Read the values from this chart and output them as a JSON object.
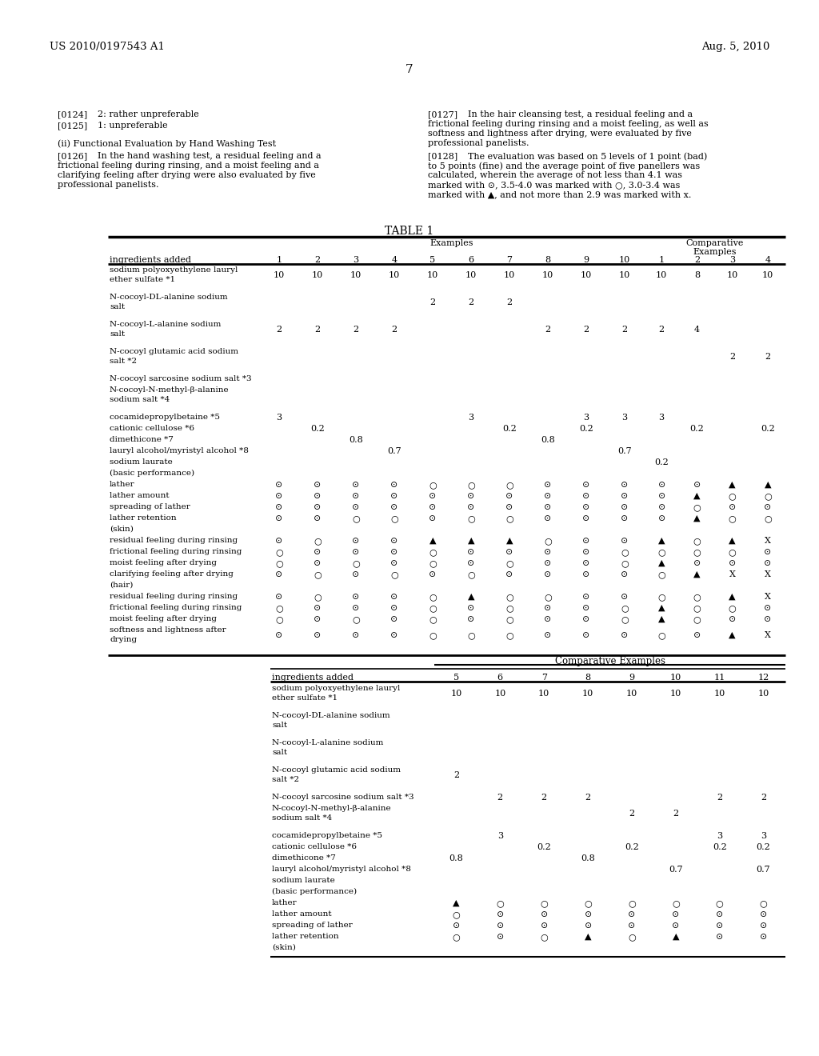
{
  "page_header_left": "US 2010/0197543 A1",
  "page_header_right": "Aug. 5, 2010",
  "page_number": "7",
  "background_color": "#ffffff",
  "t1_rows": [
    {
      "label": "sodium polyoxyethylene lauryl\nether sulfate *1",
      "ex": [
        "10",
        "10",
        "10",
        "10",
        "10",
        "10",
        "10",
        "10",
        "10",
        "10"
      ],
      "comp": [
        "10",
        "8",
        "10",
        "10"
      ]
    },
    {
      "label": "N-cocoyl-DL-alanine sodium\nsalt",
      "ex": [
        "",
        "",
        "",
        "",
        "2",
        "2",
        "2",
        "",
        "",
        ""
      ],
      "comp": [
        "",
        "",
        "",
        ""
      ]
    },
    {
      "label": "N-cocoyl-L-alanine sodium\nsalt",
      "ex": [
        "2",
        "2",
        "2",
        "2",
        "",
        "",
        "",
        "2",
        "2",
        "2"
      ],
      "comp": [
        "2",
        "4",
        "",
        ""
      ]
    },
    {
      "label": "N-cocoyl glutamic acid sodium\nsalt *2",
      "ex": [
        "",
        "",
        "",
        "",
        "",
        "",
        "",
        "",
        "",
        ""
      ],
      "comp": [
        "",
        "",
        "2",
        "2"
      ]
    },
    {
      "label": "N-cocoyl sarcosine sodium salt *3",
      "ex": [
        "",
        "",
        "",
        "",
        "",
        "",
        "",
        "",
        "",
        ""
      ],
      "comp": [
        "",
        "",
        "",
        ""
      ]
    },
    {
      "label": "N-cocoyl-N-methyl-β-alanine\nsodium salt *4",
      "ex": [
        "",
        "",
        "",
        "",
        "",
        "",
        "",
        "",
        "",
        ""
      ],
      "comp": [
        "",
        "",
        "",
        ""
      ]
    },
    {
      "label": "cocamidepropylbetaine *5",
      "ex": [
        "3",
        "",
        "",
        "",
        "",
        "3",
        "",
        "",
        "3",
        "3"
      ],
      "comp": [
        "3",
        "",
        "",
        ""
      ]
    },
    {
      "label": "cationic cellulose *6",
      "ex": [
        "",
        "0.2",
        "",
        "",
        "",
        "",
        "0.2",
        "",
        "0.2",
        ""
      ],
      "comp": [
        "",
        "0.2",
        "",
        "0.2"
      ]
    },
    {
      "label": "dimethicone *7",
      "ex": [
        "",
        "",
        "0.8",
        "",
        "",
        "",
        "",
        "0.8",
        "",
        ""
      ],
      "comp": [
        "",
        "",
        "",
        ""
      ]
    },
    {
      "label": "lauryl alcohol/myristyl alcohol *8",
      "ex": [
        "",
        "",
        "",
        "0.7",
        "",
        "",
        "",
        "",
        "",
        "0.7"
      ],
      "comp": [
        "",
        "",
        "",
        ""
      ]
    },
    {
      "label": "sodium laurate",
      "ex": [
        "",
        "",
        "",
        "",
        "",
        "",
        "",
        "",
        "",
        ""
      ],
      "comp": [
        "0.2",
        "",
        "",
        ""
      ]
    },
    {
      "label": "(basic performance)",
      "ex": [
        "",
        "",
        "",
        "",
        "",
        "",
        "",
        "",
        "",
        ""
      ],
      "comp": [
        "",
        "",
        "",
        ""
      ],
      "section": true
    },
    {
      "label": "lather",
      "ex": [
        "⊙",
        "⊙",
        "⊙",
        "⊙",
        "○",
        "○",
        "○",
        "⊙",
        "⊙",
        "⊙"
      ],
      "comp": [
        "⊙",
        "⊙",
        "▲",
        "▲"
      ]
    },
    {
      "label": "lather amount",
      "ex": [
        "⊙",
        "⊙",
        "⊙",
        "⊙",
        "⊙",
        "⊙",
        "⊙",
        "⊙",
        "⊙",
        "⊙"
      ],
      "comp": [
        "⊙",
        "▲",
        "○",
        "○"
      ]
    },
    {
      "label": "spreading of lather",
      "ex": [
        "⊙",
        "⊙",
        "⊙",
        "⊙",
        "⊙",
        "⊙",
        "⊙",
        "⊙",
        "⊙",
        "⊙"
      ],
      "comp": [
        "⊙",
        "○",
        "⊙",
        "⊙"
      ]
    },
    {
      "label": "lather retention",
      "ex": [
        "⊙",
        "⊙",
        "○",
        "○",
        "⊙",
        "○",
        "○",
        "⊙",
        "⊙",
        "⊙"
      ],
      "comp": [
        "⊙",
        "▲",
        "○",
        "○"
      ]
    },
    {
      "label": "(skin)",
      "ex": [
        "",
        "",
        "",
        "",
        "",
        "",
        "",
        "",
        "",
        ""
      ],
      "comp": [
        "",
        "",
        "",
        ""
      ],
      "section": true
    },
    {
      "label": "residual feeling during rinsing",
      "ex": [
        "⊙",
        "○",
        "⊙",
        "⊙",
        "▲",
        "▲",
        "▲",
        "○",
        "⊙",
        "⊙"
      ],
      "comp": [
        "▲",
        "○",
        "▲",
        "X"
      ]
    },
    {
      "label": "frictional feeling during rinsing",
      "ex": [
        "○",
        "⊙",
        "⊙",
        "⊙",
        "○",
        "⊙",
        "⊙",
        "⊙",
        "⊙",
        "○"
      ],
      "comp": [
        "○",
        "○",
        "○",
        "⊙"
      ]
    },
    {
      "label": "moist feeling after drying",
      "ex": [
        "○",
        "⊙",
        "○",
        "⊙",
        "○",
        "⊙",
        "○",
        "⊙",
        "⊙",
        "○"
      ],
      "comp": [
        "▲",
        "⊙",
        "⊙",
        "⊙"
      ]
    },
    {
      "label": "clarifying feeling after drying",
      "ex": [
        "⊙",
        "○",
        "⊙",
        "○",
        "⊙",
        "○",
        "⊙",
        "⊙",
        "⊙",
        "⊙"
      ],
      "comp": [
        "○",
        "▲",
        "X",
        "X"
      ]
    },
    {
      "label": "(hair)",
      "ex": [
        "",
        "",
        "",
        "",
        "",
        "",
        "",
        "",
        "",
        ""
      ],
      "comp": [
        "",
        "",
        "",
        ""
      ],
      "section": true
    },
    {
      "label": "residual feeling during rinsing",
      "ex": [
        "⊙",
        "○",
        "⊙",
        "⊙",
        "○",
        "▲",
        "○",
        "○",
        "⊙",
        "⊙"
      ],
      "comp": [
        "○",
        "○",
        "▲",
        "X"
      ]
    },
    {
      "label": "frictional feeling during rinsing",
      "ex": [
        "○",
        "⊙",
        "⊙",
        "⊙",
        "○",
        "⊙",
        "○",
        "⊙",
        "⊙",
        "○"
      ],
      "comp": [
        "▲",
        "○",
        "○",
        "⊙"
      ]
    },
    {
      "label": "moist feeling after drying",
      "ex": [
        "○",
        "⊙",
        "○",
        "⊙",
        "○",
        "⊙",
        "○",
        "⊙",
        "⊙",
        "○"
      ],
      "comp": [
        "▲",
        "○",
        "⊙",
        "⊙"
      ]
    },
    {
      "label": "softness and lightness after\ndrying",
      "ex": [
        "⊙",
        "⊙",
        "⊙",
        "⊙",
        "○",
        "○",
        "○",
        "⊙",
        "⊙",
        "⊙"
      ],
      "comp": [
        "○",
        "⊙",
        "▲",
        "X"
      ]
    }
  ],
  "t2_rows": [
    {
      "label": "sodium polyoxyethylene lauryl\nether sulfate *1",
      "vals": [
        "10",
        "10",
        "10",
        "10",
        "10",
        "10",
        "10",
        "10"
      ]
    },
    {
      "label": "N-cocoyl-DL-alanine sodium\nsalt",
      "vals": [
        "",
        "",
        "",
        "",
        "",
        "",
        "",
        ""
      ]
    },
    {
      "label": "N-cocoyl-L-alanine sodium\nsalt",
      "vals": [
        "",
        "",
        "",
        "",
        "",
        "",
        "",
        ""
      ]
    },
    {
      "label": "N-cocoyl glutamic acid sodium\nsalt *2",
      "vals": [
        "2",
        "",
        "",
        "",
        "",
        "",
        "",
        ""
      ]
    },
    {
      "label": "N-cocoyl sarcosine sodium salt *3",
      "vals": [
        "",
        "2",
        "2",
        "2",
        "",
        "",
        "2",
        "2"
      ]
    },
    {
      "label": "N-cocoyl-N-methyl-β-alanine\nsodium salt *4",
      "vals": [
        "",
        "",
        "",
        "",
        "2",
        "2",
        "",
        ""
      ]
    },
    {
      "label": "cocamidepropylbetaine *5",
      "vals": [
        "",
        "3",
        "",
        "",
        "",
        "",
        "3",
        "3"
      ]
    },
    {
      "label": "cationic cellulose *6",
      "vals": [
        "",
        "",
        "0.2",
        "",
        "0.2",
        "",
        "0.2",
        "0.2"
      ]
    },
    {
      "label": "dimethicone *7",
      "vals": [
        "0.8",
        "",
        "",
        "0.8",
        "",
        "",
        "",
        ""
      ]
    },
    {
      "label": "lauryl alcohol/myristyl alcohol *8",
      "vals": [
        "",
        "",
        "",
        "",
        "",
        "0.7",
        "",
        "0.7"
      ]
    },
    {
      "label": "sodium laurate",
      "vals": [
        "",
        "",
        "",
        "",
        "",
        "",
        "",
        ""
      ]
    },
    {
      "label": "(basic performance)",
      "vals": [
        "",
        "",
        "",
        "",
        "",
        "",
        "",
        ""
      ],
      "section": true
    },
    {
      "label": "lather",
      "vals": [
        "▲",
        "○",
        "○",
        "○",
        "○",
        "○",
        "○",
        "○"
      ]
    },
    {
      "label": "lather amount",
      "vals": [
        "○",
        "⊙",
        "⊙",
        "⊙",
        "⊙",
        "⊙",
        "⊙",
        "⊙"
      ]
    },
    {
      "label": "spreading of lather",
      "vals": [
        "⊙",
        "⊙",
        "⊙",
        "⊙",
        "⊙",
        "⊙",
        "⊙",
        "⊙"
      ]
    },
    {
      "label": "lather retention",
      "vals": [
        "○",
        "⊙",
        "○",
        "▲",
        "○",
        "▲",
        "⊙",
        "⊙"
      ]
    },
    {
      "label": "(skin)",
      "vals": [
        "",
        "",
        "",
        "",
        "",
        "",
        "",
        ""
      ],
      "section": true
    }
  ]
}
